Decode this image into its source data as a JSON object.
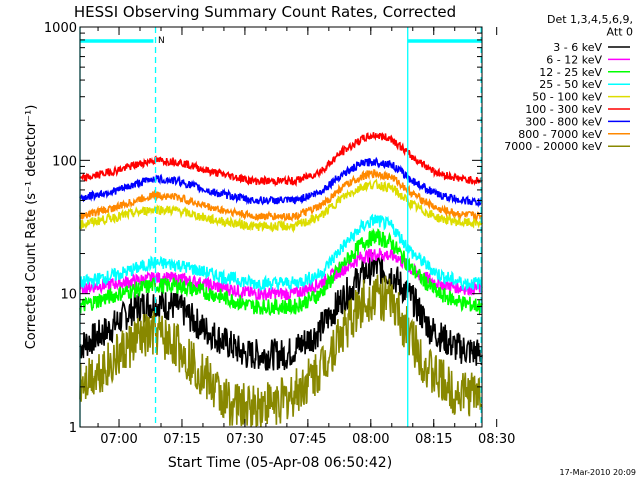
{
  "chart_data": {
    "type": "line",
    "title": "HESSI Observing Summary Count Rates, Corrected",
    "xlabel": "Start Time (05-Apr-08 06:50:42)",
    "ylabel": "Corrected Count Rate (s⁻¹ detector⁻¹)",
    "footer": "17-Mar-2010 20:09",
    "x_unit": "minutes after 06:50",
    "xlim": [
      0.7,
      96.5
    ],
    "ylim": [
      1,
      1000
    ],
    "ylog": true,
    "grid": false,
    "legend_position": "right",
    "x_tick_labels": [
      {
        "x": 10,
        "label": "07:00"
      },
      {
        "x": 25,
        "label": "07:15"
      },
      {
        "x": 40,
        "label": "07:30"
      },
      {
        "x": 55,
        "label": "07:45"
      },
      {
        "x": 70,
        "label": "08:00"
      },
      {
        "x": 85,
        "label": "08:15"
      },
      {
        "x": 100,
        "label": "08:30"
      }
    ],
    "y_tick_labels": [
      {
        "y": 1,
        "label": "1"
      },
      {
        "y": 10,
        "label": "10"
      },
      {
        "y": 100,
        "label": "100"
      },
      {
        "y": 1000,
        "label": "1000"
      }
    ],
    "legend_header": [
      "Det 1,3,4,5,6,9,",
      "Att 0"
    ],
    "series": [
      {
        "name": "3 - 6 keV",
        "color": "#000000",
        "noise": 0.12,
        "points": [
          [
            0.7,
            4
          ],
          [
            8,
            5.5
          ],
          [
            14,
            8
          ],
          [
            19,
            8.5
          ],
          [
            24,
            8
          ],
          [
            30,
            5.5
          ],
          [
            40,
            3.5
          ],
          [
            50,
            3.5
          ],
          [
            57,
            5
          ],
          [
            63,
            9
          ],
          [
            68,
            14
          ],
          [
            71,
            16
          ],
          [
            75,
            14
          ],
          [
            80,
            9
          ],
          [
            84,
            5.5
          ],
          [
            90,
            4
          ],
          [
            96.5,
            3.5
          ]
        ]
      },
      {
        "name": "6 - 12 keV",
        "color": "#ff00ff",
        "noise": 0.05,
        "points": [
          [
            0.7,
            11
          ],
          [
            10,
            12
          ],
          [
            18,
            13
          ],
          [
            24,
            13
          ],
          [
            32,
            11.5
          ],
          [
            42,
            10
          ],
          [
            52,
            10
          ],
          [
            58,
            12
          ],
          [
            63,
            15
          ],
          [
            68,
            19
          ],
          [
            72,
            20
          ],
          [
            76,
            19
          ],
          [
            81,
            14
          ],
          [
            86,
            12
          ],
          [
            92,
            11
          ],
          [
            96.5,
            11
          ]
        ]
      },
      {
        "name": "12 - 25 keV",
        "color": "#00ff00",
        "noise": 0.06,
        "points": [
          [
            0.7,
            8
          ],
          [
            10,
            10
          ],
          [
            18,
            11.5
          ],
          [
            24,
            11.5
          ],
          [
            32,
            10
          ],
          [
            42,
            8
          ],
          [
            52,
            8
          ],
          [
            58,
            10
          ],
          [
            63,
            16
          ],
          [
            68,
            24
          ],
          [
            71,
            27
          ],
          [
            75,
            24
          ],
          [
            80,
            15
          ],
          [
            86,
            10
          ],
          [
            92,
            8.5
          ],
          [
            96.5,
            8
          ]
        ]
      },
      {
        "name": "25 - 50 keV",
        "color": "#00ffff",
        "noise": 0.05,
        "points": [
          [
            0.7,
            12
          ],
          [
            10,
            14
          ],
          [
            18,
            17
          ],
          [
            24,
            16.5
          ],
          [
            32,
            14
          ],
          [
            42,
            12
          ],
          [
            52,
            12
          ],
          [
            58,
            14
          ],
          [
            63,
            22
          ],
          [
            68,
            32
          ],
          [
            71,
            36
          ],
          [
            75,
            32
          ],
          [
            80,
            20
          ],
          [
            86,
            14
          ],
          [
            92,
            12
          ],
          [
            96.5,
            12
          ]
        ]
      },
      {
        "name": "50 - 100 keV",
        "color": "#dddd00",
        "noise": 0.035,
        "points": [
          [
            0.7,
            33
          ],
          [
            10,
            38
          ],
          [
            18,
            43
          ],
          [
            24,
            42
          ],
          [
            32,
            36
          ],
          [
            42,
            32
          ],
          [
            52,
            32
          ],
          [
            58,
            38
          ],
          [
            63,
            52
          ],
          [
            68,
            64
          ],
          [
            71,
            66
          ],
          [
            75,
            62
          ],
          [
            80,
            46
          ],
          [
            86,
            37
          ],
          [
            92,
            34
          ],
          [
            96.5,
            34
          ]
        ]
      },
      {
        "name": "100 - 300 keV",
        "color": "#ff0000",
        "noise": 0.03,
        "points": [
          [
            0.7,
            72
          ],
          [
            10,
            85
          ],
          [
            18,
            100
          ],
          [
            24,
            98
          ],
          [
            32,
            82
          ],
          [
            42,
            70
          ],
          [
            52,
            70
          ],
          [
            58,
            82
          ],
          [
            63,
            115
          ],
          [
            68,
            145
          ],
          [
            71,
            155
          ],
          [
            75,
            145
          ],
          [
            80,
            105
          ],
          [
            86,
            80
          ],
          [
            92,
            72
          ],
          [
            96.5,
            70
          ]
        ]
      },
      {
        "name": "300 - 800 keV",
        "color": "#0000ff",
        "noise": 0.03,
        "points": [
          [
            0.7,
            52
          ],
          [
            10,
            60
          ],
          [
            18,
            73
          ],
          [
            24,
            70
          ],
          [
            32,
            58
          ],
          [
            42,
            50
          ],
          [
            52,
            50
          ],
          [
            58,
            58
          ],
          [
            63,
            78
          ],
          [
            68,
            95
          ],
          [
            71,
            98
          ],
          [
            75,
            93
          ],
          [
            80,
            70
          ],
          [
            86,
            55
          ],
          [
            92,
            50
          ],
          [
            96.5,
            48
          ]
        ]
      },
      {
        "name": "800 - 7000 keV",
        "color": "#ff8800",
        "noise": 0.03,
        "points": [
          [
            0.7,
            38
          ],
          [
            10,
            45
          ],
          [
            18,
            55
          ],
          [
            24,
            53
          ],
          [
            32,
            44
          ],
          [
            42,
            38
          ],
          [
            52,
            38
          ],
          [
            58,
            45
          ],
          [
            63,
            62
          ],
          [
            68,
            76
          ],
          [
            71,
            80
          ],
          [
            75,
            75
          ],
          [
            80,
            56
          ],
          [
            86,
            43
          ],
          [
            92,
            39
          ],
          [
            96.5,
            38
          ]
        ]
      },
      {
        "name": "7000 - 20000 keV",
        "color": "#888800",
        "noise": 0.18,
        "points": [
          [
            0.7,
            2.2
          ],
          [
            8,
            3
          ],
          [
            14,
            4.5
          ],
          [
            19,
            5
          ],
          [
            24,
            4
          ],
          [
            30,
            2.5
          ],
          [
            35,
            1.6
          ],
          [
            40,
            1.4
          ],
          [
            50,
            1.6
          ],
          [
            57,
            2.5
          ],
          [
            63,
            5
          ],
          [
            68,
            8.5
          ],
          [
            71,
            10
          ],
          [
            75,
            8.5
          ],
          [
            80,
            4.5
          ],
          [
            84,
            2.6
          ],
          [
            90,
            1.8
          ],
          [
            96.5,
            1.8
          ]
        ]
      }
    ],
    "annotations": [
      {
        "type": "vertical-line",
        "style": "solid",
        "color": "#00ffff",
        "x": 0.7
      },
      {
        "type": "vertical-line",
        "style": "dashed",
        "color": "#00ffff",
        "x": 18.7
      },
      {
        "type": "vertical-line",
        "style": "solid",
        "color": "#00ffff",
        "x": 78.8
      },
      {
        "type": "vertical-line",
        "style": "dashed",
        "color": "#00ffff",
        "x": 96.3
      },
      {
        "type": "span-bar",
        "color": "#00ffff",
        "x0": 0.7,
        "x1": 18.2,
        "label": ""
      },
      {
        "type": "span-bar",
        "color": "#00ffff",
        "x0": 78.8,
        "x1": 96.5,
        "label": ""
      },
      {
        "type": "text",
        "x": 19.3,
        "text": "N",
        "color": "#00ffff"
      }
    ]
  }
}
